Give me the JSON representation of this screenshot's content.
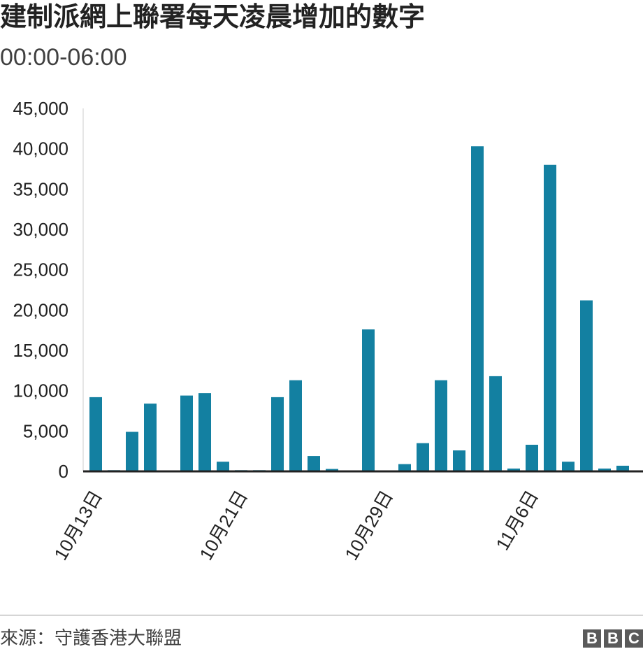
{
  "header": {
    "title": "建制派網上聯署每天凌晨增加的數字",
    "subtitle": "00:00-06:00"
  },
  "footer": {
    "source": "來源：守護香港大聯盟",
    "logo_letters": [
      "B",
      "B",
      "C"
    ]
  },
  "chart_data": {
    "type": "bar",
    "title": "建制派網上聯署每天凌晨增加的數字",
    "subtitle": "00:00-06:00",
    "xlabel": "",
    "ylabel": "",
    "ylim": [
      0,
      45000
    ],
    "yticks": [
      "0",
      "5,000",
      "10,000",
      "15,000",
      "20,000",
      "25,000",
      "30,000",
      "35,000",
      "40,000",
      "45,000"
    ],
    "xtick_labels": [
      {
        "index": 0,
        "label": "10月13日"
      },
      {
        "index": 8,
        "label": "10月21日"
      },
      {
        "index": 16,
        "label": "10月29日"
      },
      {
        "index": 24,
        "label": "11月6日"
      }
    ],
    "bar_color": "#1380a1",
    "grid": false,
    "values": [
      9200,
      150,
      4900,
      8400,
      0,
      9400,
      9700,
      1200,
      150,
      150,
      9200,
      11300,
      1900,
      300,
      0,
      17600,
      0,
      900,
      3500,
      11300,
      2600,
      40300,
      11800,
      350,
      3300,
      38000,
      1200,
      21200,
      350,
      700
    ]
  }
}
